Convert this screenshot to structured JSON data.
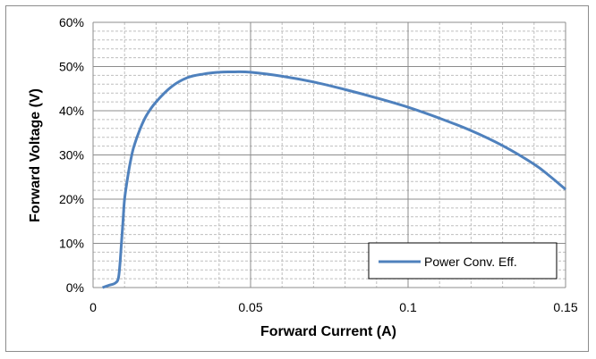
{
  "chart_data": {
    "type": "line",
    "xlabel": "Forward Current (A)",
    "ylabel": "Forward Voltage (V)",
    "xlim": [
      0,
      0.15
    ],
    "ylim": [
      0,
      60
    ],
    "x_ticks": [
      0,
      0.05,
      0.1,
      0.15
    ],
    "x_tick_labels": [
      "0",
      "0.05",
      "0.1",
      "0.15"
    ],
    "y_ticks": [
      0,
      10,
      20,
      30,
      40,
      50,
      60
    ],
    "y_tick_labels": [
      "0%",
      "10%",
      "20%",
      "30%",
      "40%",
      "50%",
      "60%"
    ],
    "grid": true,
    "legend_position": "bottom-right",
    "series": [
      {
        "name": "Power Conv. Eff.",
        "color": "#4f81bd",
        "x": [
          0.003,
          0.005,
          0.007,
          0.008,
          0.0085,
          0.009,
          0.0095,
          0.01,
          0.011,
          0.012,
          0.013,
          0.015,
          0.017,
          0.02,
          0.025,
          0.03,
          0.035,
          0.04,
          0.045,
          0.05,
          0.06,
          0.07,
          0.08,
          0.09,
          0.1,
          0.11,
          0.12,
          0.13,
          0.14,
          0.145,
          0.15
        ],
        "y": [
          0,
          0.5,
          1,
          2,
          5,
          10,
          15,
          20,
          25,
          29,
          32,
          36,
          39,
          42,
          45.5,
          47.5,
          48.3,
          48.7,
          48.8,
          48.7,
          47.8,
          46.5,
          44.8,
          42.9,
          40.8,
          38.3,
          35.5,
          32.1,
          27.9,
          25.2,
          22.2
        ]
      }
    ]
  }
}
